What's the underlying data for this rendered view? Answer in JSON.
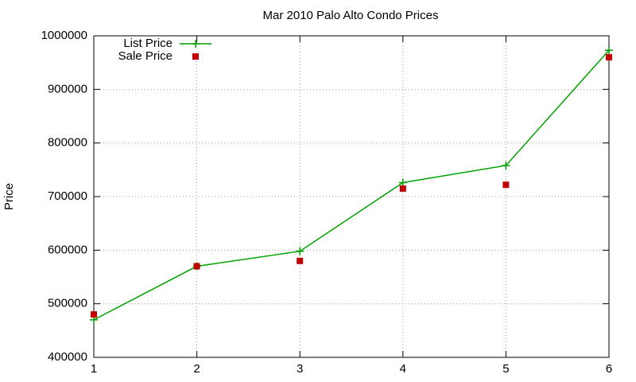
{
  "chart_data": {
    "type": "line",
    "title": "Mar 2010 Palo Alto Condo Prices",
    "y_label": "Price",
    "x": [
      1,
      2,
      3,
      4,
      5,
      6
    ],
    "series": [
      {
        "name": "List Price",
        "color": "#00a000",
        "marker": "plus",
        "values": [
          470000,
          570000,
          598000,
          726000,
          758000,
          973000
        ]
      },
      {
        "name": "Sale Price",
        "color": "#c00000",
        "marker": "square",
        "values": [
          480000,
          570000,
          580000,
          715000,
          722000,
          960000
        ]
      }
    ],
    "xlim": [
      1,
      6
    ],
    "xticks": [
      1,
      2,
      3,
      4,
      5,
      6
    ],
    "ylim": [
      400000,
      1000000
    ],
    "yticks": [
      400000,
      500000,
      600000,
      700000,
      800000,
      900000,
      1000000
    ],
    "grid": true,
    "legend": "top-left"
  }
}
